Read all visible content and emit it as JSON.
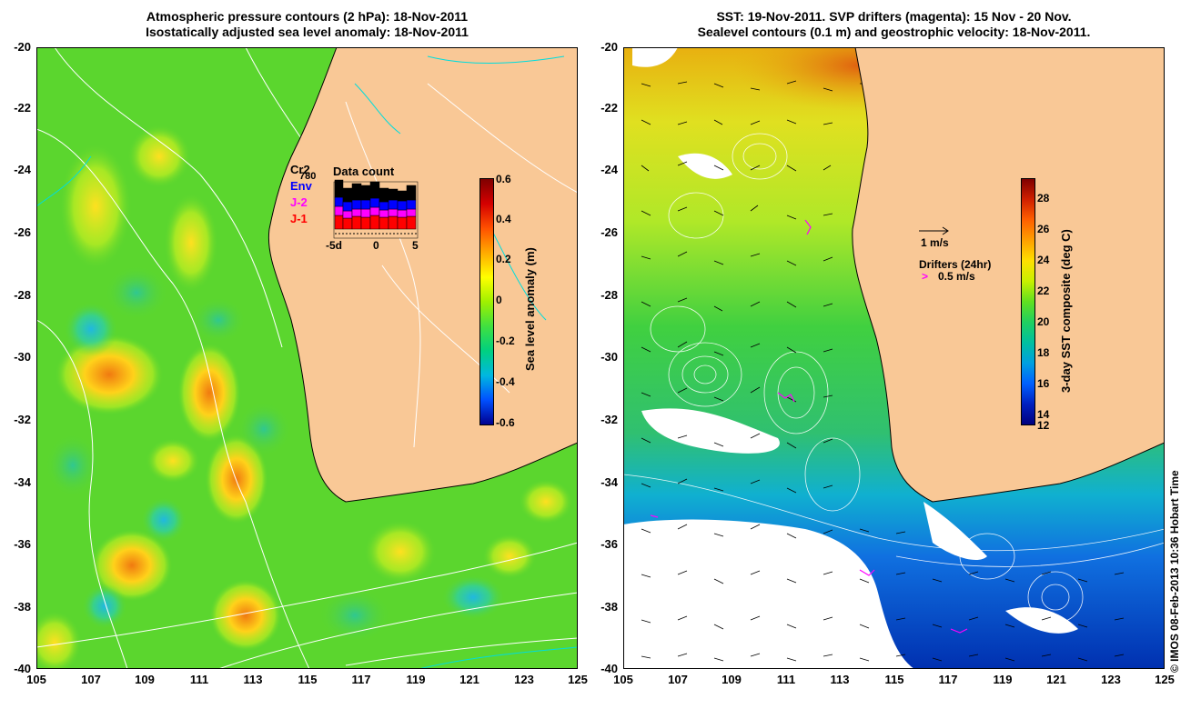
{
  "left_panel": {
    "title_line1": "Atmospheric pressure contours (2 hPa): 18-Nov-2011",
    "title_line2": "Isostatically adjusted sea level anomaly: 18-Nov-2011",
    "colorbar_label": "Sea level anomaly (m)",
    "colorbar_ticks": [
      "0.6",
      "0.4",
      "0.2",
      "0",
      "-0.2",
      "-0.4",
      "-0.6"
    ],
    "data_count": {
      "title": "Data count",
      "satellites": [
        "Cr2",
        "Env",
        "J-2",
        "J-1"
      ],
      "max_label": "780",
      "x_ticks": [
        "-5d",
        "0",
        "5"
      ]
    }
  },
  "right_panel": {
    "title_line1": "SST: 19-Nov-2011. SVP drifters (magenta): 15 Nov - 20 Nov.",
    "title_line2": "Sealevel contours (0.1 m) and geostrophic velocity: 18-Nov-2011.",
    "colorbar_label": "3-day SST composite (deg C)",
    "colorbar_ticks": [
      "28",
      "26",
      "24",
      "22",
      "20",
      "18",
      "16",
      "14",
      "12"
    ],
    "velocity_scale": "1 m/s",
    "drifters_label": "Drifters (24hr)",
    "drifter_speed": "0.5 m/s"
  },
  "axes": {
    "latitudes": [
      "-20",
      "-22",
      "-24",
      "-26",
      "-28",
      "-30",
      "-32",
      "-34",
      "-36",
      "-38",
      "-40"
    ],
    "longitudes": [
      "105",
      "107",
      "109",
      "111",
      "113",
      "115",
      "117",
      "119",
      "121",
      "123",
      "125"
    ]
  },
  "credit": "© IMOS 08-Feb-2013 10:36 Hobart Time",
  "colors": {
    "land": "#f9c896",
    "ocean_left": "#5bd62e",
    "sla_colormap": [
      "#00007f",
      "#0000ff",
      "#00bfff",
      "#00ff7f",
      "#7fff00",
      "#ffff00",
      "#ff7f00",
      "#ff0000",
      "#7f0000"
    ],
    "sst_colormap": [
      "#00007f",
      "#0040ff",
      "#00bfff",
      "#00ffbf",
      "#40ff40",
      "#bfff00",
      "#ffff00",
      "#ff8000",
      "#bf0000"
    ],
    "drifters": "#ff00ff"
  }
}
